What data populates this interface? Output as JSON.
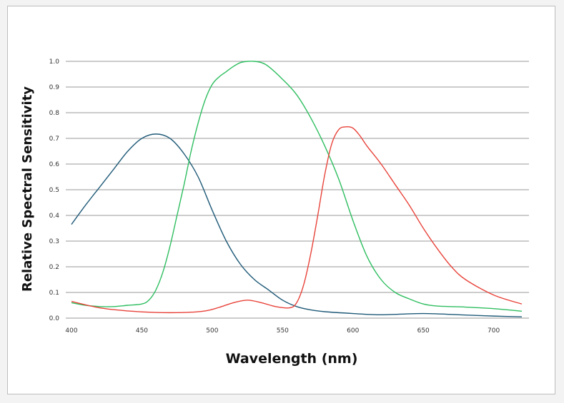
{
  "chart_data": {
    "type": "line",
    "xlabel": "Wavelength (nm)",
    "ylabel": "Relative Spectral Sensitivity",
    "xlim": [
      400,
      720
    ],
    "ylim": [
      0,
      1.0
    ],
    "x_ticks": [
      400,
      450,
      500,
      550,
      600,
      650,
      700
    ],
    "y_ticks": [
      "0.0",
      "0.1",
      "0.2",
      "0.3",
      "0.4",
      "0.5",
      "0.6",
      "0.7",
      "0.8",
      "0.9",
      "1.0"
    ],
    "grid": "horizontal",
    "series": [
      {
        "color": "#1f5a78",
        "x": [
          400,
          410,
          420,
          430,
          440,
          450,
          460,
          470,
          480,
          490,
          500,
          510,
          520,
          530,
          540,
          550,
          560,
          570,
          580,
          600,
          620,
          650,
          680,
          700,
          720
        ],
        "y": [
          0.365,
          0.44,
          0.51,
          0.58,
          0.65,
          0.7,
          0.717,
          0.7,
          0.64,
          0.55,
          0.42,
          0.3,
          0.21,
          0.15,
          0.11,
          0.07,
          0.045,
          0.032,
          0.025,
          0.018,
          0.013,
          0.018,
          0.012,
          0.008,
          0.005
        ]
      },
      {
        "color": "#2fbe60",
        "x": [
          400,
          410,
          420,
          430,
          440,
          450,
          455,
          460,
          465,
          470,
          475,
          480,
          485,
          490,
          495,
          500,
          505,
          510,
          515,
          520,
          525,
          530,
          535,
          540,
          550,
          560,
          570,
          580,
          590,
          600,
          610,
          620,
          630,
          640,
          650,
          660,
          680,
          700,
          720
        ],
        "y": [
          0.06,
          0.05,
          0.045,
          0.045,
          0.05,
          0.055,
          0.07,
          0.11,
          0.18,
          0.28,
          0.4,
          0.52,
          0.65,
          0.76,
          0.85,
          0.91,
          0.94,
          0.96,
          0.98,
          0.995,
          1.0,
          1.0,
          0.995,
          0.98,
          0.93,
          0.87,
          0.78,
          0.67,
          0.54,
          0.38,
          0.24,
          0.15,
          0.1,
          0.075,
          0.055,
          0.047,
          0.043,
          0.037,
          0.027
        ]
      },
      {
        "color": "#e8433a",
        "x": [
          400,
          420,
          440,
          460,
          480,
          495,
          505,
          515,
          525,
          535,
          545,
          555,
          560,
          565,
          570,
          575,
          580,
          585,
          590,
          595,
          600,
          605,
          610,
          620,
          630,
          640,
          650,
          660,
          670,
          680,
          700,
          720
        ],
        "y": [
          0.065,
          0.04,
          0.028,
          0.022,
          0.022,
          0.028,
          0.042,
          0.06,
          0.07,
          0.06,
          0.045,
          0.04,
          0.06,
          0.13,
          0.25,
          0.4,
          0.56,
          0.68,
          0.735,
          0.745,
          0.74,
          0.71,
          0.67,
          0.6,
          0.52,
          0.44,
          0.35,
          0.27,
          0.2,
          0.15,
          0.09,
          0.055
        ]
      }
    ]
  }
}
